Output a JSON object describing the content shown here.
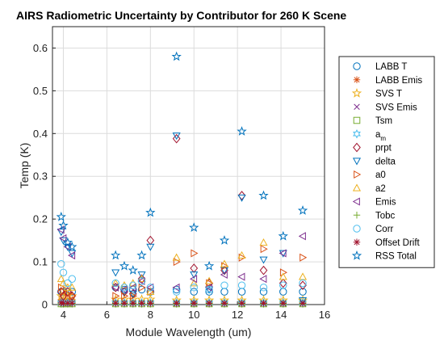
{
  "chart_data": {
    "type": "scatter",
    "title": "AIRS Radiometric Uncertainty by Contributor for 260 K Scene",
    "xlabel": "Module Wavelength (um)",
    "ylabel": "Temp (K)",
    "xlim": [
      3.5,
      16
    ],
    "ylim": [
      0,
      0.65
    ],
    "xticks": [
      4,
      6,
      8,
      10,
      12,
      14,
      16
    ],
    "yticks": [
      0,
      0.1,
      0.2,
      0.3,
      0.4,
      0.5,
      0.6
    ],
    "ytick_labels": [
      "0",
      "0.1",
      "0.2",
      "0.3",
      "0.4",
      "0.5",
      "0.6"
    ],
    "grid": true,
    "legend_position": "outside-right",
    "x": [
      3.9,
      4.0,
      4.2,
      4.4,
      6.4,
      6.8,
      7.2,
      7.6,
      8.0,
      9.2,
      10.0,
      10.7,
      11.4,
      12.2,
      13.2,
      14.1,
      15.0
    ],
    "series": [
      {
        "name": "LABB T",
        "marker": "circle",
        "color": "#0072BD",
        "values": [
          0.03,
          0.03,
          0.03,
          0.03,
          0.04,
          0.035,
          0.035,
          0.035,
          0.03,
          0.035,
          0.03,
          0.03,
          0.03,
          0.03,
          0.03,
          0.03,
          0.03
        ]
      },
      {
        "name": "LABB Emis",
        "marker": "asterisk",
        "color": "#D95319",
        "values": [
          0.012,
          0.012,
          0.012,
          0.012,
          0.006,
          0.006,
          0.006,
          0.006,
          0.006,
          0.004,
          0.004,
          0.004,
          0.004,
          0.004,
          0.004,
          0.004,
          0.004
        ]
      },
      {
        "name": "SVS T",
        "marker": "star",
        "color": "#EDB120",
        "values": [
          0.02,
          0.02,
          0.02,
          0.02,
          0.012,
          0.012,
          0.012,
          0.012,
          0.012,
          0.01,
          0.01,
          0.01,
          0.01,
          0.01,
          0.01,
          0.01,
          0.01
        ]
      },
      {
        "name": "SVS Emis",
        "marker": "x",
        "color": "#7E2F8E",
        "values": [
          0.004,
          0.004,
          0.004,
          0.004,
          0.003,
          0.003,
          0.003,
          0.003,
          0.003,
          0.002,
          0.002,
          0.002,
          0.002,
          0.002,
          0.002,
          0.002,
          0.002
        ]
      },
      {
        "name": "Tsm",
        "marker": "square",
        "color": "#77AC30",
        "values": [
          0.002,
          0.002,
          0.002,
          0.002,
          0.002,
          0.002,
          0.002,
          0.002,
          0.002,
          0.002,
          0.002,
          0.002,
          0.002,
          0.002,
          0.002,
          0.002,
          0.002
        ]
      },
      {
        "name": "a_m",
        "label_main": "a",
        "label_sub": "m",
        "marker": "hexagram",
        "color": "#4DBEEE",
        "values": [
          0.004,
          0.004,
          0.004,
          0.004,
          0.004,
          0.004,
          0.004,
          0.004,
          0.004,
          0.004,
          0.004,
          0.004,
          0.004,
          0.004,
          0.004,
          0.004,
          0.004
        ]
      },
      {
        "name": "prpt",
        "marker": "diamond",
        "color": "#A2142F",
        "values": [
          0.03,
          0.02,
          0.03,
          0.02,
          0.04,
          0.03,
          0.025,
          0.06,
          0.15,
          0.388,
          0.085,
          0.05,
          0.08,
          0.255,
          0.08,
          0.05,
          0.045
        ]
      },
      {
        "name": "delta",
        "marker": "triangle-down",
        "color": "#0072BD",
        "values": [
          0.17,
          0.15,
          0.135,
          0.12,
          0.075,
          0.03,
          0.025,
          0.07,
          0.135,
          0.395,
          0.07,
          0.035,
          0.08,
          0.25,
          0.105,
          0.12,
          0.01
        ]
      },
      {
        "name": "a0",
        "marker": "triangle-right",
        "color": "#D95319",
        "values": [
          0.04,
          0.03,
          0.025,
          0.02,
          0.02,
          0.02,
          0.02,
          0.04,
          0.03,
          0.1,
          0.12,
          0.05,
          0.09,
          0.11,
          0.13,
          0.075,
          0.11
        ]
      },
      {
        "name": "a2",
        "marker": "triangle-up",
        "color": "#EDB120",
        "values": [
          0.06,
          0.05,
          0.04,
          0.04,
          0.05,
          0.045,
          0.05,
          0.06,
          0.03,
          0.11,
          0.05,
          0.055,
          0.095,
          0.115,
          0.145,
          0.065,
          0.065
        ]
      },
      {
        "name": "Emis",
        "marker": "triangle-left",
        "color": "#7E2F8E",
        "values": [
          0.175,
          0.155,
          0.135,
          0.115,
          0.04,
          0.035,
          0.04,
          0.055,
          0.04,
          0.04,
          0.06,
          0.04,
          0.07,
          0.065,
          0.06,
          0.12,
          0.16
        ]
      },
      {
        "name": "Tobc",
        "marker": "plus",
        "color": "#77AC30",
        "values": [
          0.001,
          0.001,
          0.001,
          0.001,
          0.001,
          0.001,
          0.001,
          0.001,
          0.001,
          0.001,
          0.001,
          0.001,
          0.001,
          0.001,
          0.001,
          0.001,
          0.001
        ]
      },
      {
        "name": "Corr",
        "marker": "circle",
        "color": "#4DBEEE",
        "values": [
          0.095,
          0.075,
          0.05,
          0.06,
          0.05,
          0.04,
          0.045,
          0.055,
          0.04,
          0.03,
          0.04,
          0.035,
          0.045,
          0.045,
          0.04,
          0.045,
          0.05
        ]
      },
      {
        "name": "Offset Drift",
        "marker": "asterisk",
        "color": "#A2142F",
        "values": [
          0.004,
          0.003,
          0.003,
          0.003,
          0.003,
          0.003,
          0.003,
          0.003,
          0.003,
          0.003,
          0.003,
          0.003,
          0.003,
          0.003,
          0.003,
          0.003,
          0.003
        ]
      },
      {
        "name": "RSS Total",
        "marker": "pentagram",
        "color": "#0072BD",
        "values": [
          0.205,
          0.185,
          0.145,
          0.135,
          0.115,
          0.09,
          0.08,
          0.115,
          0.215,
          0.58,
          0.18,
          0.09,
          0.15,
          0.405,
          0.255,
          0.16,
          0.22
        ]
      }
    ]
  }
}
